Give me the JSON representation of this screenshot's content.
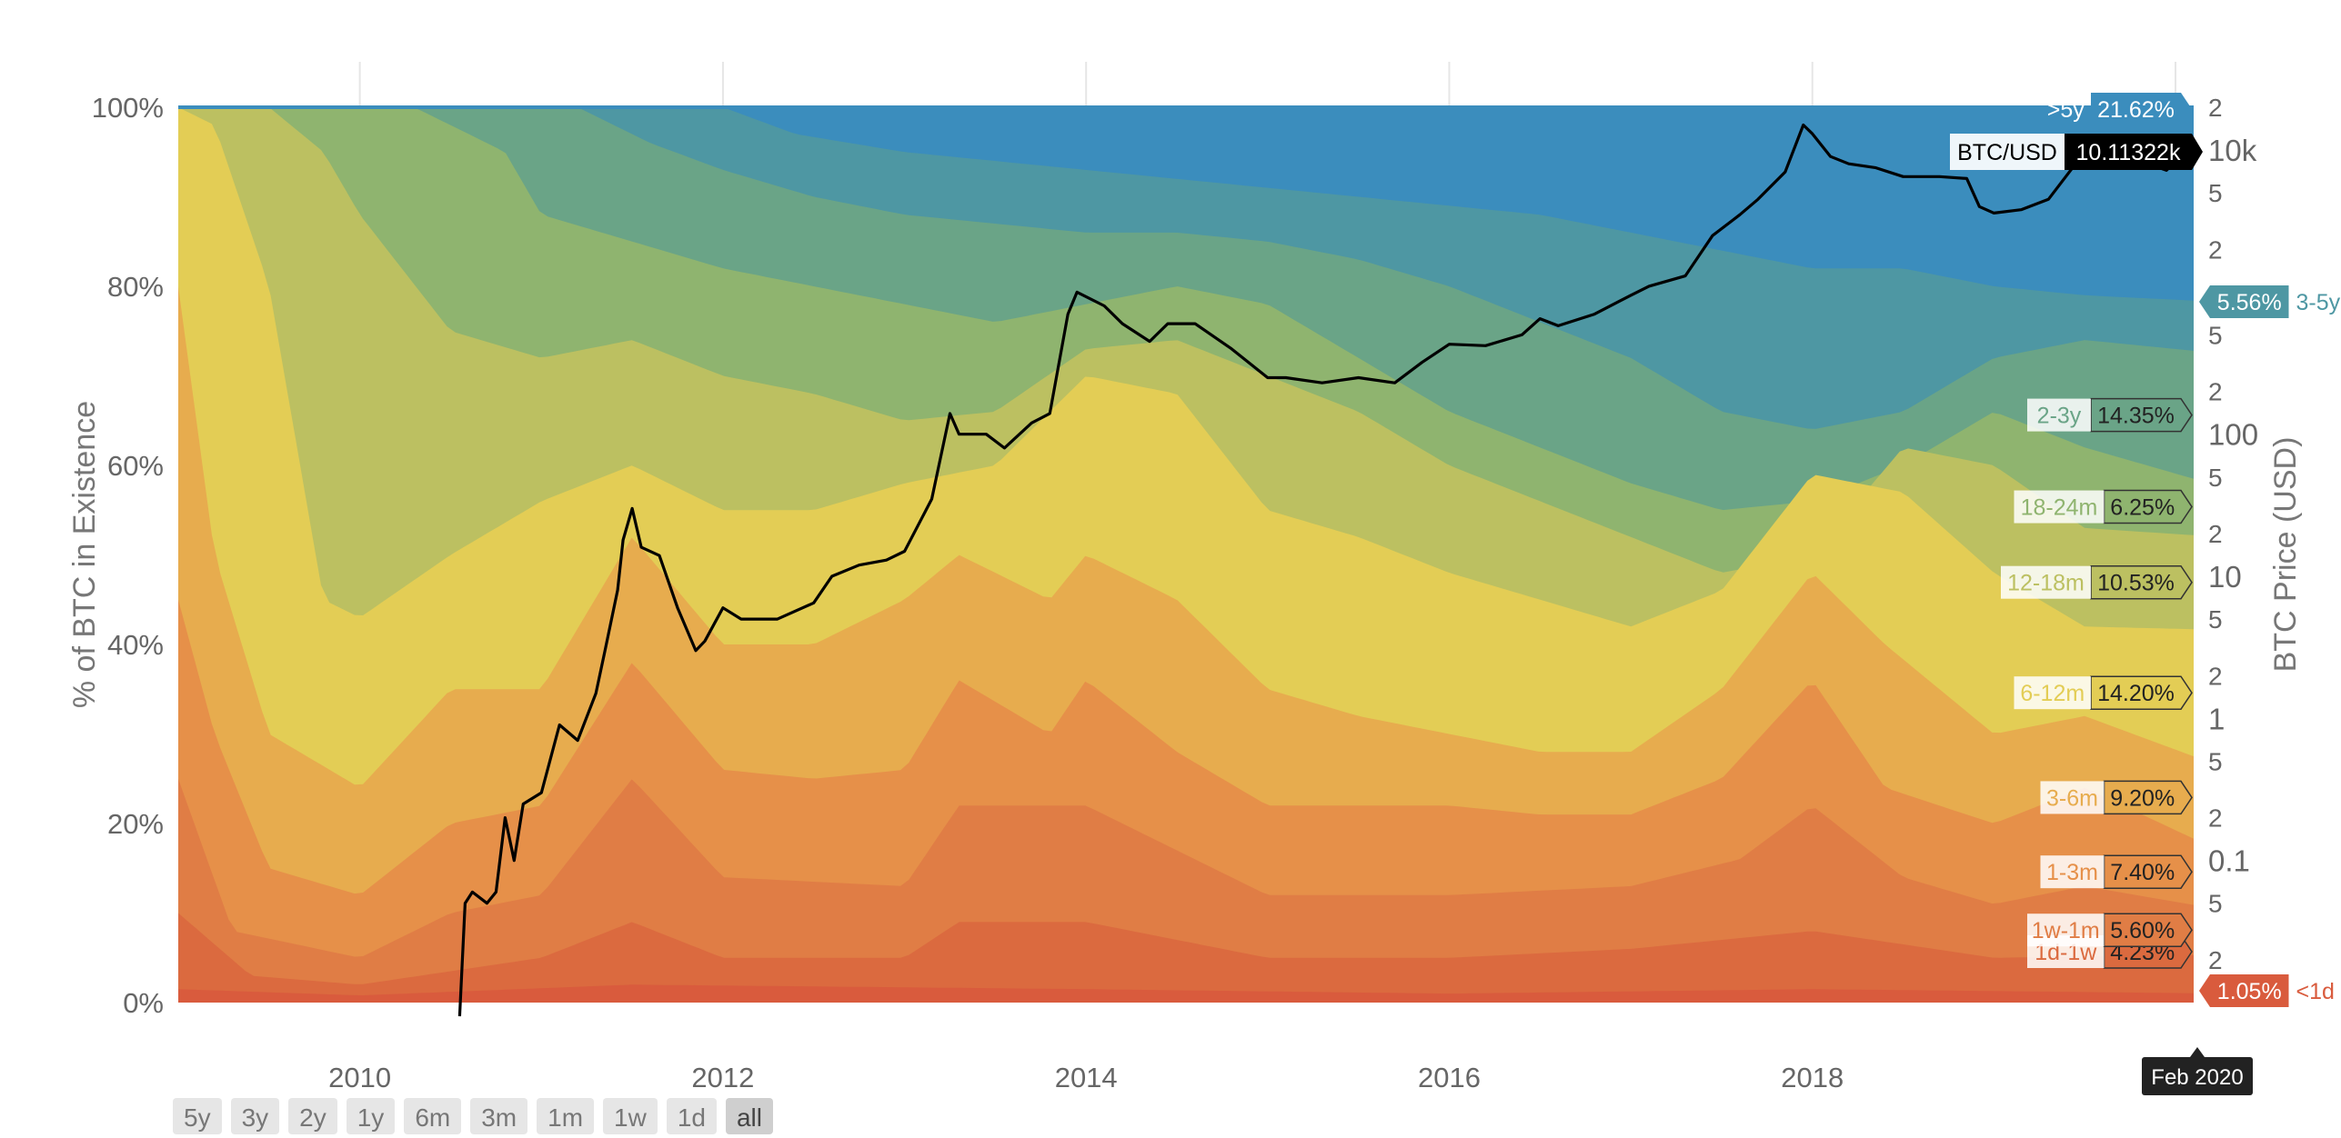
{
  "chart_data": {
    "type": "area",
    "stacking": "percent",
    "x_range": [
      "2009-01",
      "2020-02"
    ],
    "x_ticks": [
      "2010",
      "2012",
      "2014",
      "2016",
      "2018"
    ],
    "y_left": {
      "label": "% of BTC in Existence",
      "range": [
        0,
        100
      ],
      "ticks": [
        "0%",
        "20%",
        "40%",
        "60%",
        "80%",
        "100%"
      ]
    },
    "y_right": {
      "label": "BTC Price (USD)",
      "scale": "log",
      "range": [
        0.01,
        20000
      ],
      "major_ticks": [
        "0.1",
        "1",
        "10",
        "100",
        "10k"
      ],
      "minor_ticks": [
        "2",
        "5",
        "2",
        "5",
        "2",
        "5",
        "2",
        "5",
        "2",
        "5",
        "2",
        "5",
        "2"
      ]
    },
    "series": [
      {
        "name": "<1d",
        "color": "#d95b3d",
        "current": "1.05%",
        "boundary": [
          [
            2009.0,
            1.5
          ],
          [
            2010.0,
            0.8
          ],
          [
            2011.5,
            2.0
          ],
          [
            2014.0,
            1.5
          ],
          [
            2016.0,
            1.0
          ],
          [
            2018.0,
            1.5
          ],
          [
            2020.1,
            1.05
          ]
        ]
      },
      {
        "name": "1d-1w",
        "color": "#db6a3f",
        "current": "4.23%",
        "boundary": [
          [
            2009.0,
            10
          ],
          [
            2009.4,
            3
          ],
          [
            2010.0,
            2
          ],
          [
            2011.0,
            5
          ],
          [
            2011.5,
            9
          ],
          [
            2012.0,
            5
          ],
          [
            2013.0,
            5
          ],
          [
            2013.3,
            9
          ],
          [
            2014.0,
            9
          ],
          [
            2015.0,
            5
          ],
          [
            2016.0,
            5
          ],
          [
            2017.0,
            6
          ],
          [
            2018.0,
            8
          ],
          [
            2019.0,
            5
          ],
          [
            2020.1,
            5.3
          ]
        ]
      },
      {
        "name": "1w-1m",
        "color": "#e07d45",
        "current": "5.60%",
        "boundary": [
          [
            2009.0,
            25
          ],
          [
            2009.3,
            8
          ],
          [
            2010.0,
            5
          ],
          [
            2010.5,
            10
          ],
          [
            2011.0,
            12
          ],
          [
            2011.5,
            25
          ],
          [
            2012.0,
            14
          ],
          [
            2013.0,
            13
          ],
          [
            2013.3,
            22
          ],
          [
            2014.0,
            22
          ],
          [
            2015.0,
            12
          ],
          [
            2016.0,
            12
          ],
          [
            2017.0,
            13
          ],
          [
            2017.6,
            16
          ],
          [
            2018.0,
            22
          ],
          [
            2018.5,
            14
          ],
          [
            2019.0,
            11
          ],
          [
            2019.5,
            13
          ],
          [
            2020.1,
            10.9
          ]
        ]
      },
      {
        "name": "1-3m",
        "color": "#e69049",
        "current": "7.40%",
        "boundary": [
          [
            2009.0,
            45
          ],
          [
            2009.2,
            30
          ],
          [
            2009.5,
            15
          ],
          [
            2010.0,
            12
          ],
          [
            2010.5,
            20
          ],
          [
            2011.0,
            22
          ],
          [
            2011.5,
            38
          ],
          [
            2012.0,
            26
          ],
          [
            2012.5,
            25
          ],
          [
            2013.0,
            26
          ],
          [
            2013.3,
            36
          ],
          [
            2013.8,
            30
          ],
          [
            2014.0,
            36
          ],
          [
            2014.5,
            28
          ],
          [
            2015.0,
            22
          ],
          [
            2015.5,
            22
          ],
          [
            2016.0,
            22
          ],
          [
            2016.5,
            21
          ],
          [
            2017.0,
            21
          ],
          [
            2017.5,
            25
          ],
          [
            2018.0,
            36
          ],
          [
            2018.4,
            24
          ],
          [
            2019.0,
            20
          ],
          [
            2019.5,
            24
          ],
          [
            2020.1,
            18.3
          ]
        ]
      },
      {
        "name": "3-6m",
        "color": "#e7ac4e",
        "current": "9.20%",
        "boundary": [
          [
            2009.0,
            80
          ],
          [
            2009.2,
            50
          ],
          [
            2009.5,
            30
          ],
          [
            2010.0,
            24
          ],
          [
            2010.5,
            35
          ],
          [
            2011.0,
            35
          ],
          [
            2011.5,
            52
          ],
          [
            2012.0,
            40
          ],
          [
            2012.5,
            40
          ],
          [
            2013.0,
            45
          ],
          [
            2013.3,
            50
          ],
          [
            2013.8,
            45
          ],
          [
            2014.0,
            50
          ],
          [
            2014.5,
            45
          ],
          [
            2015.0,
            35
          ],
          [
            2015.5,
            32
          ],
          [
            2016.0,
            30
          ],
          [
            2016.5,
            28
          ],
          [
            2017.0,
            28
          ],
          [
            2017.5,
            35
          ],
          [
            2018.0,
            48
          ],
          [
            2018.4,
            40
          ],
          [
            2019.0,
            30
          ],
          [
            2019.5,
            32
          ],
          [
            2020.1,
            27.5
          ]
        ]
      },
      {
        "name": "6-12m",
        "color": "#e3cd55",
        "current": "14.20%",
        "boundary": [
          [
            2009.0,
            100
          ],
          [
            2009.2,
            98
          ],
          [
            2009.5,
            80
          ],
          [
            2009.8,
            45
          ],
          [
            2010.0,
            43
          ],
          [
            2010.5,
            50
          ],
          [
            2011.0,
            56
          ],
          [
            2011.5,
            60
          ],
          [
            2012.0,
            55
          ],
          [
            2012.5,
            55
          ],
          [
            2013.0,
            58
          ],
          [
            2013.5,
            60
          ],
          [
            2014.0,
            70
          ],
          [
            2014.5,
            68
          ],
          [
            2015.0,
            55
          ],
          [
            2015.5,
            52
          ],
          [
            2016.0,
            48
          ],
          [
            2016.5,
            45
          ],
          [
            2017.0,
            42
          ],
          [
            2017.5,
            46
          ],
          [
            2018.0,
            59
          ],
          [
            2018.5,
            57
          ],
          [
            2019.0,
            48
          ],
          [
            2019.5,
            42
          ],
          [
            2020.1,
            41.7
          ]
        ]
      },
      {
        "name": "12-18m",
        "color": "#bcc061",
        "current": "10.53%",
        "boundary": [
          [
            2009.0,
            100
          ],
          [
            2009.5,
            100
          ],
          [
            2009.8,
            95
          ],
          [
            2010.0,
            88
          ],
          [
            2010.5,
            75
          ],
          [
            2011.0,
            72
          ],
          [
            2011.5,
            74
          ],
          [
            2012.0,
            70
          ],
          [
            2012.5,
            68
          ],
          [
            2013.0,
            65
          ],
          [
            2013.5,
            66
          ],
          [
            2014.0,
            73
          ],
          [
            2014.5,
            74
          ],
          [
            2015.0,
            70
          ],
          [
            2015.5,
            66
          ],
          [
            2016.0,
            60
          ],
          [
            2016.5,
            56
          ],
          [
            2017.0,
            52
          ],
          [
            2017.5,
            48
          ],
          [
            2018.0,
            50
          ],
          [
            2018.5,
            62
          ],
          [
            2019.0,
            60
          ],
          [
            2019.5,
            53
          ],
          [
            2020.1,
            52.2
          ]
        ]
      },
      {
        "name": "18-24m",
        "color": "#8fb46f",
        "current": "6.25%",
        "boundary": [
          [
            2009.0,
            100
          ],
          [
            2010.3,
            100
          ],
          [
            2010.8,
            95
          ],
          [
            2011.0,
            88
          ],
          [
            2011.5,
            85
          ],
          [
            2012.0,
            82
          ],
          [
            2012.5,
            80
          ],
          [
            2013.0,
            78
          ],
          [
            2013.5,
            76
          ],
          [
            2014.0,
            78
          ],
          [
            2014.5,
            80
          ],
          [
            2015.0,
            78
          ],
          [
            2015.5,
            72
          ],
          [
            2016.0,
            66
          ],
          [
            2016.5,
            62
          ],
          [
            2017.0,
            58
          ],
          [
            2017.5,
            55
          ],
          [
            2018.0,
            56
          ],
          [
            2018.5,
            60
          ],
          [
            2019.0,
            66
          ],
          [
            2019.5,
            62
          ],
          [
            2020.1,
            58.5
          ]
        ]
      },
      {
        "name": "2-3y",
        "color": "#6aa487",
        "current": "14.35%",
        "boundary": [
          [
            2009.0,
            100
          ],
          [
            2011.2,
            100
          ],
          [
            2011.6,
            96
          ],
          [
            2012.0,
            93
          ],
          [
            2012.5,
            90
          ],
          [
            2013.0,
            88
          ],
          [
            2013.5,
            87
          ],
          [
            2014.0,
            86
          ],
          [
            2014.5,
            86
          ],
          [
            2015.0,
            85
          ],
          [
            2015.5,
            83
          ],
          [
            2016.0,
            80
          ],
          [
            2016.5,
            76
          ],
          [
            2017.0,
            72
          ],
          [
            2017.5,
            66
          ],
          [
            2018.0,
            64
          ],
          [
            2018.5,
            66
          ],
          [
            2019.0,
            72
          ],
          [
            2019.5,
            74
          ],
          [
            2020.1,
            72.8
          ]
        ]
      },
      {
        "name": "3-5y",
        "color": "#4e97a3",
        "current": "5.56%",
        "boundary": [
          [
            2009.0,
            100
          ],
          [
            2012.0,
            100
          ],
          [
            2012.4,
            97
          ],
          [
            2013.0,
            95
          ],
          [
            2013.5,
            94
          ],
          [
            2014.0,
            93
          ],
          [
            2014.5,
            92
          ],
          [
            2015.0,
            91
          ],
          [
            2015.5,
            90
          ],
          [
            2016.0,
            89
          ],
          [
            2016.5,
            88
          ],
          [
            2017.0,
            86
          ],
          [
            2017.5,
            84
          ],
          [
            2018.0,
            82
          ],
          [
            2018.5,
            82
          ],
          [
            2019.0,
            80
          ],
          [
            2019.5,
            79
          ],
          [
            2020.1,
            78.4
          ]
        ]
      },
      {
        "name": ">5y",
        "color": "#3b8dbd",
        "current": "21.62%",
        "boundary": [
          [
            2009.0,
            100
          ],
          [
            2020.1,
            100
          ]
        ]
      }
    ],
    "price_series": {
      "name": "BTC/USD",
      "current": "10.11322k",
      "color": "#000000",
      "points": [
        [
          2010.55,
          0.008
        ],
        [
          2010.58,
          0.05
        ],
        [
          2010.62,
          0.06
        ],
        [
          2010.7,
          0.05
        ],
        [
          2010.75,
          0.06
        ],
        [
          2010.8,
          0.2
        ],
        [
          2010.85,
          0.1
        ],
        [
          2010.9,
          0.25
        ],
        [
          2011.0,
          0.3
        ],
        [
          2011.1,
          0.9
        ],
        [
          2011.2,
          0.7
        ],
        [
          2011.3,
          1.5
        ],
        [
          2011.35,
          3
        ],
        [
          2011.42,
          8
        ],
        [
          2011.45,
          18
        ],
        [
          2011.5,
          30
        ],
        [
          2011.55,
          16
        ],
        [
          2011.65,
          14
        ],
        [
          2011.75,
          6
        ],
        [
          2011.85,
          3
        ],
        [
          2011.9,
          3.5
        ],
        [
          2012.0,
          6
        ],
        [
          2012.1,
          5
        ],
        [
          2012.3,
          5
        ],
        [
          2012.5,
          6.5
        ],
        [
          2012.6,
          10
        ],
        [
          2012.75,
          12
        ],
        [
          2012.9,
          13
        ],
        [
          2013.0,
          15
        ],
        [
          2013.15,
          35
        ],
        [
          2013.25,
          140
        ],
        [
          2013.3,
          100
        ],
        [
          2013.45,
          100
        ],
        [
          2013.55,
          80
        ],
        [
          2013.7,
          120
        ],
        [
          2013.8,
          140
        ],
        [
          2013.9,
          700
        ],
        [
          2013.95,
          1000
        ],
        [
          2014.1,
          800
        ],
        [
          2014.2,
          600
        ],
        [
          2014.35,
          450
        ],
        [
          2014.45,
          600
        ],
        [
          2014.6,
          600
        ],
        [
          2014.8,
          400
        ],
        [
          2015.0,
          250
        ],
        [
          2015.1,
          250
        ],
        [
          2015.3,
          230
        ],
        [
          2015.5,
          250
        ],
        [
          2015.7,
          230
        ],
        [
          2015.85,
          320
        ],
        [
          2016.0,
          430
        ],
        [
          2016.2,
          420
        ],
        [
          2016.4,
          500
        ],
        [
          2016.5,
          650
        ],
        [
          2016.6,
          580
        ],
        [
          2016.8,
          700
        ],
        [
          2017.0,
          950
        ],
        [
          2017.1,
          1100
        ],
        [
          2017.3,
          1300
        ],
        [
          2017.45,
          2500
        ],
        [
          2017.6,
          3500
        ],
        [
          2017.7,
          4500
        ],
        [
          2017.85,
          7000
        ],
        [
          2017.95,
          15000
        ],
        [
          2018.0,
          13000
        ],
        [
          2018.1,
          9000
        ],
        [
          2018.2,
          8000
        ],
        [
          2018.35,
          7500
        ],
        [
          2018.5,
          6500
        ],
        [
          2018.7,
          6500
        ],
        [
          2018.85,
          6300
        ],
        [
          2018.92,
          4000
        ],
        [
          2019.0,
          3600
        ],
        [
          2019.15,
          3800
        ],
        [
          2019.3,
          4500
        ],
        [
          2019.45,
          8000
        ],
        [
          2019.55,
          11000
        ],
        [
          2019.7,
          10000
        ],
        [
          2019.85,
          8000
        ],
        [
          2019.95,
          7200
        ],
        [
          2020.05,
          9500
        ],
        [
          2020.1,
          10113
        ]
      ]
    }
  },
  "overlay": {
    "price_badge": {
      "label": "BTC/USD",
      "value": "10.11322k"
    },
    "date_tooltip": "Feb 2020"
  },
  "range_buttons": [
    "5y",
    "3y",
    "2y",
    "1y",
    "6m",
    "3m",
    "1m",
    "1w",
    "1d",
    "all"
  ],
  "active_range": "all"
}
